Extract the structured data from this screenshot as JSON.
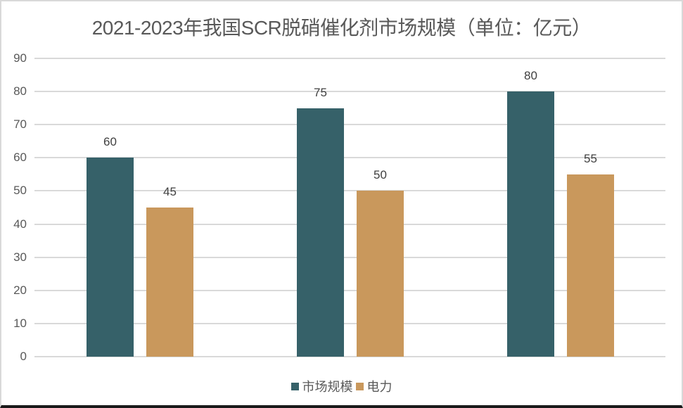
{
  "chart_data": {
    "type": "bar",
    "title": "2021-2023年我国SCR脱硝催化剂市场规模（单位：亿元）",
    "categories": [
      "",
      "",
      ""
    ],
    "series": [
      {
        "name": "市场规模",
        "color": "#366169",
        "values": [
          60,
          75,
          80
        ]
      },
      {
        "name": "电力",
        "color": "#C9985C",
        "values": [
          45,
          50,
          55
        ]
      }
    ],
    "xlabel": "",
    "ylabel": "",
    "ylim": [
      0,
      90
    ],
    "yticks": [
      0,
      10,
      20,
      30,
      40,
      50,
      60,
      70,
      80,
      90
    ],
    "grid": true,
    "legend_position": "bottom",
    "data_labels": true
  },
  "title": "2021-2023年我国SCR脱硝催化剂市场规模（单位：亿元）",
  "y_axis": {
    "ticks": [
      "90",
      "80",
      "70",
      "60",
      "50",
      "40",
      "30",
      "20",
      "10",
      "0"
    ]
  },
  "labels": {
    "g0s0": "60",
    "g0s1": "45",
    "g1s0": "75",
    "g1s1": "50",
    "g2s0": "80",
    "g2s1": "55"
  },
  "legend": {
    "items": [
      {
        "label": "市场规模",
        "color": "#366169"
      },
      {
        "label": "电力",
        "color": "#C9985C"
      }
    ]
  }
}
